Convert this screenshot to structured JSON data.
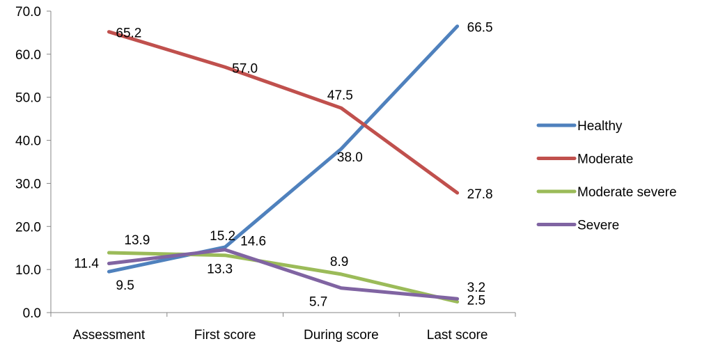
{
  "chart_data": {
    "type": "line",
    "title": "",
    "xlabel": "",
    "ylabel": "",
    "categories": [
      "Assessment",
      "First score",
      "During score",
      "Last score"
    ],
    "ylim": [
      0,
      70
    ],
    "yticks": [
      "0.0",
      "10.0",
      "20.0",
      "30.0",
      "40.0",
      "50.0",
      "60.0",
      "70.0"
    ],
    "grid": false,
    "legend_position": "right",
    "series": [
      {
        "name": "Healthy",
        "color": "#4F81BD",
        "values": [
          9.5,
          15.2,
          38.0,
          66.5
        ],
        "labels": [
          "9.5",
          "15.2",
          "38.0",
          "66.5"
        ]
      },
      {
        "name": "Moderate",
        "color": "#C0504D",
        "values": [
          65.2,
          57.0,
          47.5,
          27.8
        ],
        "labels": [
          "65.2",
          "57.0",
          "47.5",
          "27.8"
        ]
      },
      {
        "name": "Moderate severe",
        "color": "#9BBB59",
        "values": [
          13.9,
          13.3,
          8.9,
          2.5
        ],
        "labels": [
          "13.9",
          "13.3",
          "8.9",
          "2.5"
        ]
      },
      {
        "name": "Severe",
        "color": "#8064A2",
        "values": [
          11.4,
          14.6,
          5.7,
          3.2
        ],
        "labels": [
          "11.4",
          "14.6",
          "5.7",
          "3.2"
        ]
      }
    ]
  }
}
